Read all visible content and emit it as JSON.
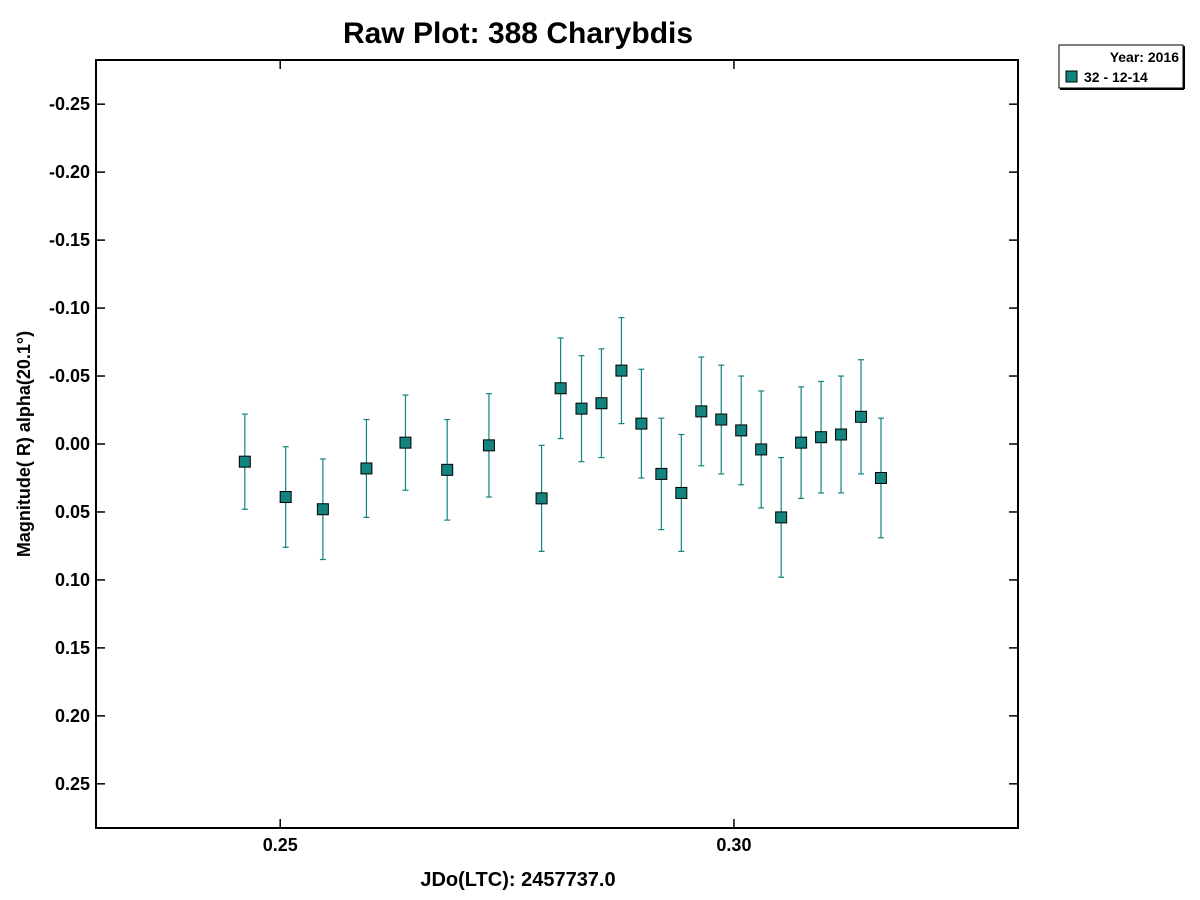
{
  "chart_data": {
    "type": "scatter",
    "title": "Raw Plot: 388 Charybdis",
    "xlabel": "JDo(LTC): 2457737.0",
    "ylabel": "Magnitude( R) alpha(20.1°)",
    "xlim": [
      0.2297,
      0.3313
    ],
    "ylim": [
      0.2825,
      -0.2825
    ],
    "y_inverted": true,
    "grid": false,
    "x_ticks": [
      0.25,
      0.3
    ],
    "x_tick_labels": [
      "0.25",
      "0.30"
    ],
    "y_ticks": [
      -0.25,
      -0.2,
      -0.15,
      -0.1,
      -0.05,
      0.0,
      0.05,
      0.1,
      0.15,
      0.2,
      0.25
    ],
    "y_tick_labels": [
      "-0.25",
      "-0.20",
      "-0.15",
      "-0.10",
      "-0.05",
      "0.00",
      "0.05",
      "0.10",
      "0.15",
      "0.20",
      "0.25"
    ],
    "legend": {
      "placement": "outside-top-right",
      "header": "Year: 2016",
      "entries": [
        "32 - 12-14"
      ]
    },
    "series": [
      {
        "name": "32 - 12-14",
        "color": "#12837f",
        "marker": "square",
        "points": [
          {
            "x": 0.2461,
            "y": 0.013,
            "err": 0.035
          },
          {
            "x": 0.2506,
            "y": 0.039,
            "err": 0.037
          },
          {
            "x": 0.2547,
            "y": 0.048,
            "err": 0.037
          },
          {
            "x": 0.2595,
            "y": 0.018,
            "err": 0.036
          },
          {
            "x": 0.2638,
            "y": -0.001,
            "err": 0.035
          },
          {
            "x": 0.2684,
            "y": 0.019,
            "err": 0.037
          },
          {
            "x": 0.273,
            "y": 0.001,
            "err": 0.038
          },
          {
            "x": 0.2788,
            "y": 0.04,
            "err": 0.039
          },
          {
            "x": 0.2809,
            "y": -0.041,
            "err": 0.037
          },
          {
            "x": 0.2832,
            "y": -0.026,
            "err": 0.039
          },
          {
            "x": 0.2854,
            "y": -0.03,
            "err": 0.04
          },
          {
            "x": 0.2876,
            "y": -0.054,
            "err": 0.039
          },
          {
            "x": 0.2898,
            "y": -0.015,
            "err": 0.04
          },
          {
            "x": 0.292,
            "y": 0.022,
            "err": 0.041
          },
          {
            "x": 0.2942,
            "y": 0.036,
            "err": 0.043
          },
          {
            "x": 0.2964,
            "y": -0.024,
            "err": 0.04
          },
          {
            "x": 0.2986,
            "y": -0.018,
            "err": 0.04
          },
          {
            "x": 0.3008,
            "y": -0.01,
            "err": 0.04
          },
          {
            "x": 0.303,
            "y": 0.004,
            "err": 0.043
          },
          {
            "x": 0.3052,
            "y": 0.054,
            "err": 0.044
          },
          {
            "x": 0.3074,
            "y": -0.001,
            "err": 0.041
          },
          {
            "x": 0.3096,
            "y": -0.005,
            "err": 0.041
          },
          {
            "x": 0.3118,
            "y": -0.007,
            "err": 0.043
          },
          {
            "x": 0.314,
            "y": -0.02,
            "err": 0.042
          },
          {
            "x": 0.3162,
            "y": 0.025,
            "err": 0.044
          }
        ]
      }
    ]
  }
}
